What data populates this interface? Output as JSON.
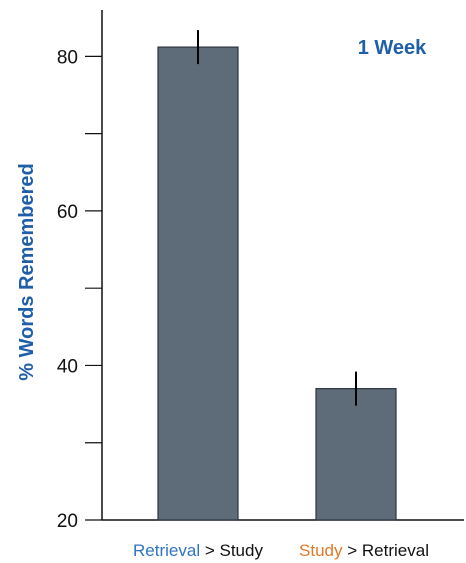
{
  "chart_data": {
    "type": "bar",
    "categories": [
      {
        "parts": [
          {
            "text": "Retrieval",
            "color": "#2f74c0"
          },
          {
            "text": " > Study",
            "color": "#111111"
          }
        ]
      },
      {
        "parts": [
          {
            "text": "Study",
            "color": "#e07a2a"
          },
          {
            "text": " > Retrieval",
            "color": "#111111"
          }
        ]
      }
    ],
    "values": [
      81.2,
      37.0
    ],
    "errors": [
      2.2,
      2.2
    ],
    "ylabel": "% Words Remembered",
    "annotation": "1 Week",
    "ylim": [
      20,
      86
    ],
    "yticks_major": [
      20,
      40,
      60,
      80
    ],
    "yticks_minor": [
      30,
      50,
      70
    ],
    "grid": false,
    "colors": {
      "bar": "#5e6b78",
      "bar_edge": "#2d3640",
      "axis": "#111111",
      "label": "#1f5fa8"
    }
  }
}
